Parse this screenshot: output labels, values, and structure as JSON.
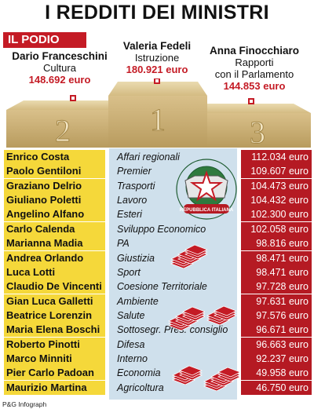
{
  "title": "I REDDITI DEI MINISTRI",
  "podio": {
    "label": "IL PODIO",
    "first": {
      "name": "Valeria Fedeli",
      "role": "Istruzione",
      "role_line2": "",
      "amount": "180.921 euro",
      "place": "1"
    },
    "second": {
      "name": "Dario Franceschini",
      "role": "Cultura",
      "role_line2": "",
      "amount": "148.692 euro",
      "place": "2"
    },
    "third": {
      "name": "Anna Finocchiaro",
      "role": "Rapporti",
      "role_line2": "con il Parlamento",
      "amount": "144.853 euro",
      "place": "3"
    }
  },
  "emblem_text": "REPUBBLICA ITALIANA",
  "colors": {
    "accent_red": "#c41b25",
    "income_red": "#b51a23",
    "name_yellow": "#f5d83a",
    "band_blue": "#cfe0ec",
    "podium_gold": "#d9c08a"
  },
  "chart_data": {
    "type": "table",
    "title": "I REDDITI DEI MINISTRI",
    "columns": [
      "",
      "",
      ""
    ],
    "rows": [
      {
        "name": "Enrico Costa",
        "ministry": "Affari regionali",
        "income": "112.034 euro",
        "value": 112034
      },
      {
        "name": "Paolo Gentiloni",
        "ministry": "Premier",
        "income": "109.607 euro",
        "value": 109607
      },
      {
        "name": "Graziano Delrio",
        "ministry": "Trasporti",
        "income": "104.473 euro",
        "value": 104473
      },
      {
        "name": "Giuliano Poletti",
        "ministry": "Lavoro",
        "income": "104.432 euro",
        "value": 104432
      },
      {
        "name": "Angelino Alfano",
        "ministry": "Esteri",
        "income": "102.300 euro",
        "value": 102300
      },
      {
        "name": "Carlo Calenda",
        "ministry": "Sviluppo Economico",
        "income": "102.058 euro",
        "value": 102058
      },
      {
        "name": "Marianna Madia",
        "ministry": "PA",
        "income": "98.816 euro",
        "value": 98816
      },
      {
        "name": "Andrea Orlando",
        "ministry": "Giustizia",
        "income": "98.471 euro",
        "value": 98471
      },
      {
        "name": "Luca Lotti",
        "ministry": "Sport",
        "income": "98.471 euro",
        "value": 98471
      },
      {
        "name": "Claudio De Vincenti",
        "ministry": "Coesione Territoriale",
        "income": "97.728 euro",
        "value": 97728
      },
      {
        "name": "Gian Luca Galletti",
        "ministry": "Ambiente",
        "income": "97.631 euro",
        "value": 97631
      },
      {
        "name": "Beatrice Lorenzin",
        "ministry": "Salute",
        "income": "97.576 euro",
        "value": 97576
      },
      {
        "name": "Maria Elena Boschi",
        "ministry": "Sottosegr. Pres. consiglio",
        "income": "96.671 euro",
        "value": 96671
      },
      {
        "name": "Roberto Pinotti",
        "ministry": "Difesa",
        "income": "96.663 euro",
        "value": 96663
      },
      {
        "name": "Marco Minniti",
        "ministry": "Interno",
        "income": "92.237 euro",
        "value": 92237
      },
      {
        "name": "Pier Carlo Padoan",
        "ministry": "Economia",
        "income": "49.958 euro",
        "value": 49958
      },
      {
        "name": "Maurizio Martina",
        "ministry": "Agricoltura",
        "income": "46.750 euro",
        "value": 46750
      }
    ]
  },
  "source": "P&G Infograph",
  "icons": [
    "italian-emblem-icon",
    "money-stack-icon"
  ]
}
